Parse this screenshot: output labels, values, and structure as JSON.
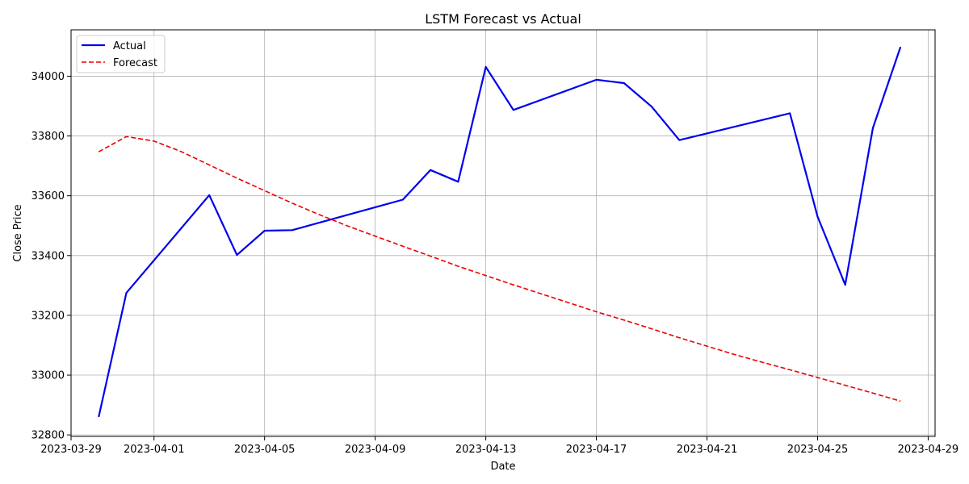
{
  "chart_data": {
    "type": "line",
    "title": "LSTM Forecast vs Actual",
    "xlabel": "Date",
    "ylabel": "Close Price",
    "xlim": [
      "2023-03-29T00:00",
      "2023-04-29T06:00"
    ],
    "ylim": [
      32795,
      34155
    ],
    "x_ticks": [
      "2023-03-29",
      "2023-04-01",
      "2023-04-05",
      "2023-04-09",
      "2023-04-13",
      "2023-04-17",
      "2023-04-21",
      "2023-04-25",
      "2023-04-29"
    ],
    "y_ticks": [
      32800,
      33000,
      33200,
      33400,
      33600,
      33800,
      34000
    ],
    "grid": true,
    "legend_position": "top-left",
    "series": [
      {
        "name": "Actual",
        "color": "#0000ee",
        "style": "solid",
        "points": [
          [
            "2023-03-30",
            32860
          ],
          [
            "2023-03-31",
            33275
          ],
          [
            "2023-04-03",
            33602
          ],
          [
            "2023-04-04",
            33402
          ],
          [
            "2023-04-05",
            33483
          ],
          [
            "2023-04-06",
            33485
          ],
          [
            "2023-04-10",
            33587
          ],
          [
            "2023-04-11",
            33686
          ],
          [
            "2023-04-12",
            33647
          ],
          [
            "2023-04-13",
            34031
          ],
          [
            "2023-04-14",
            33887
          ],
          [
            "2023-04-17",
            33988
          ],
          [
            "2023-04-18",
            33977
          ],
          [
            "2023-04-19",
            33898
          ],
          [
            "2023-04-20",
            33786
          ],
          [
            "2023-04-24",
            33876
          ],
          [
            "2023-04-25",
            33530
          ],
          [
            "2023-04-26",
            33302
          ],
          [
            "2023-04-27",
            33827
          ],
          [
            "2023-04-28",
            34098
          ]
        ]
      },
      {
        "name": "Forecast",
        "color": "#ee0000",
        "style": "dashed",
        "points": [
          [
            "2023-03-30",
            33747
          ],
          [
            "2023-03-31",
            33798
          ],
          [
            "2023-04-01",
            33783
          ],
          [
            "2023-04-02",
            33747
          ],
          [
            "2023-04-03",
            33703
          ],
          [
            "2023-04-04",
            33659
          ],
          [
            "2023-04-05",
            33617
          ],
          [
            "2023-04-06",
            33575
          ],
          [
            "2023-04-07",
            33536
          ],
          [
            "2023-04-08",
            33499
          ],
          [
            "2023-04-09",
            33465
          ],
          [
            "2023-04-10",
            33431
          ],
          [
            "2023-04-11",
            33398
          ],
          [
            "2023-04-12",
            33364
          ],
          [
            "2023-04-13",
            33333
          ],
          [
            "2023-04-14",
            33302
          ],
          [
            "2023-04-15",
            33272
          ],
          [
            "2023-04-16",
            33242
          ],
          [
            "2023-04-17",
            33212
          ],
          [
            "2023-04-18",
            33184
          ],
          [
            "2023-04-19",
            33155
          ],
          [
            "2023-04-20",
            33125
          ],
          [
            "2023-04-21",
            33097
          ],
          [
            "2023-04-22",
            33069
          ],
          [
            "2023-04-23",
            33043
          ],
          [
            "2023-04-24",
            33018
          ],
          [
            "2023-04-25",
            32992
          ],
          [
            "2023-04-26",
            32966
          ],
          [
            "2023-04-27",
            32940
          ],
          [
            "2023-04-28",
            32913
          ]
        ]
      }
    ]
  }
}
